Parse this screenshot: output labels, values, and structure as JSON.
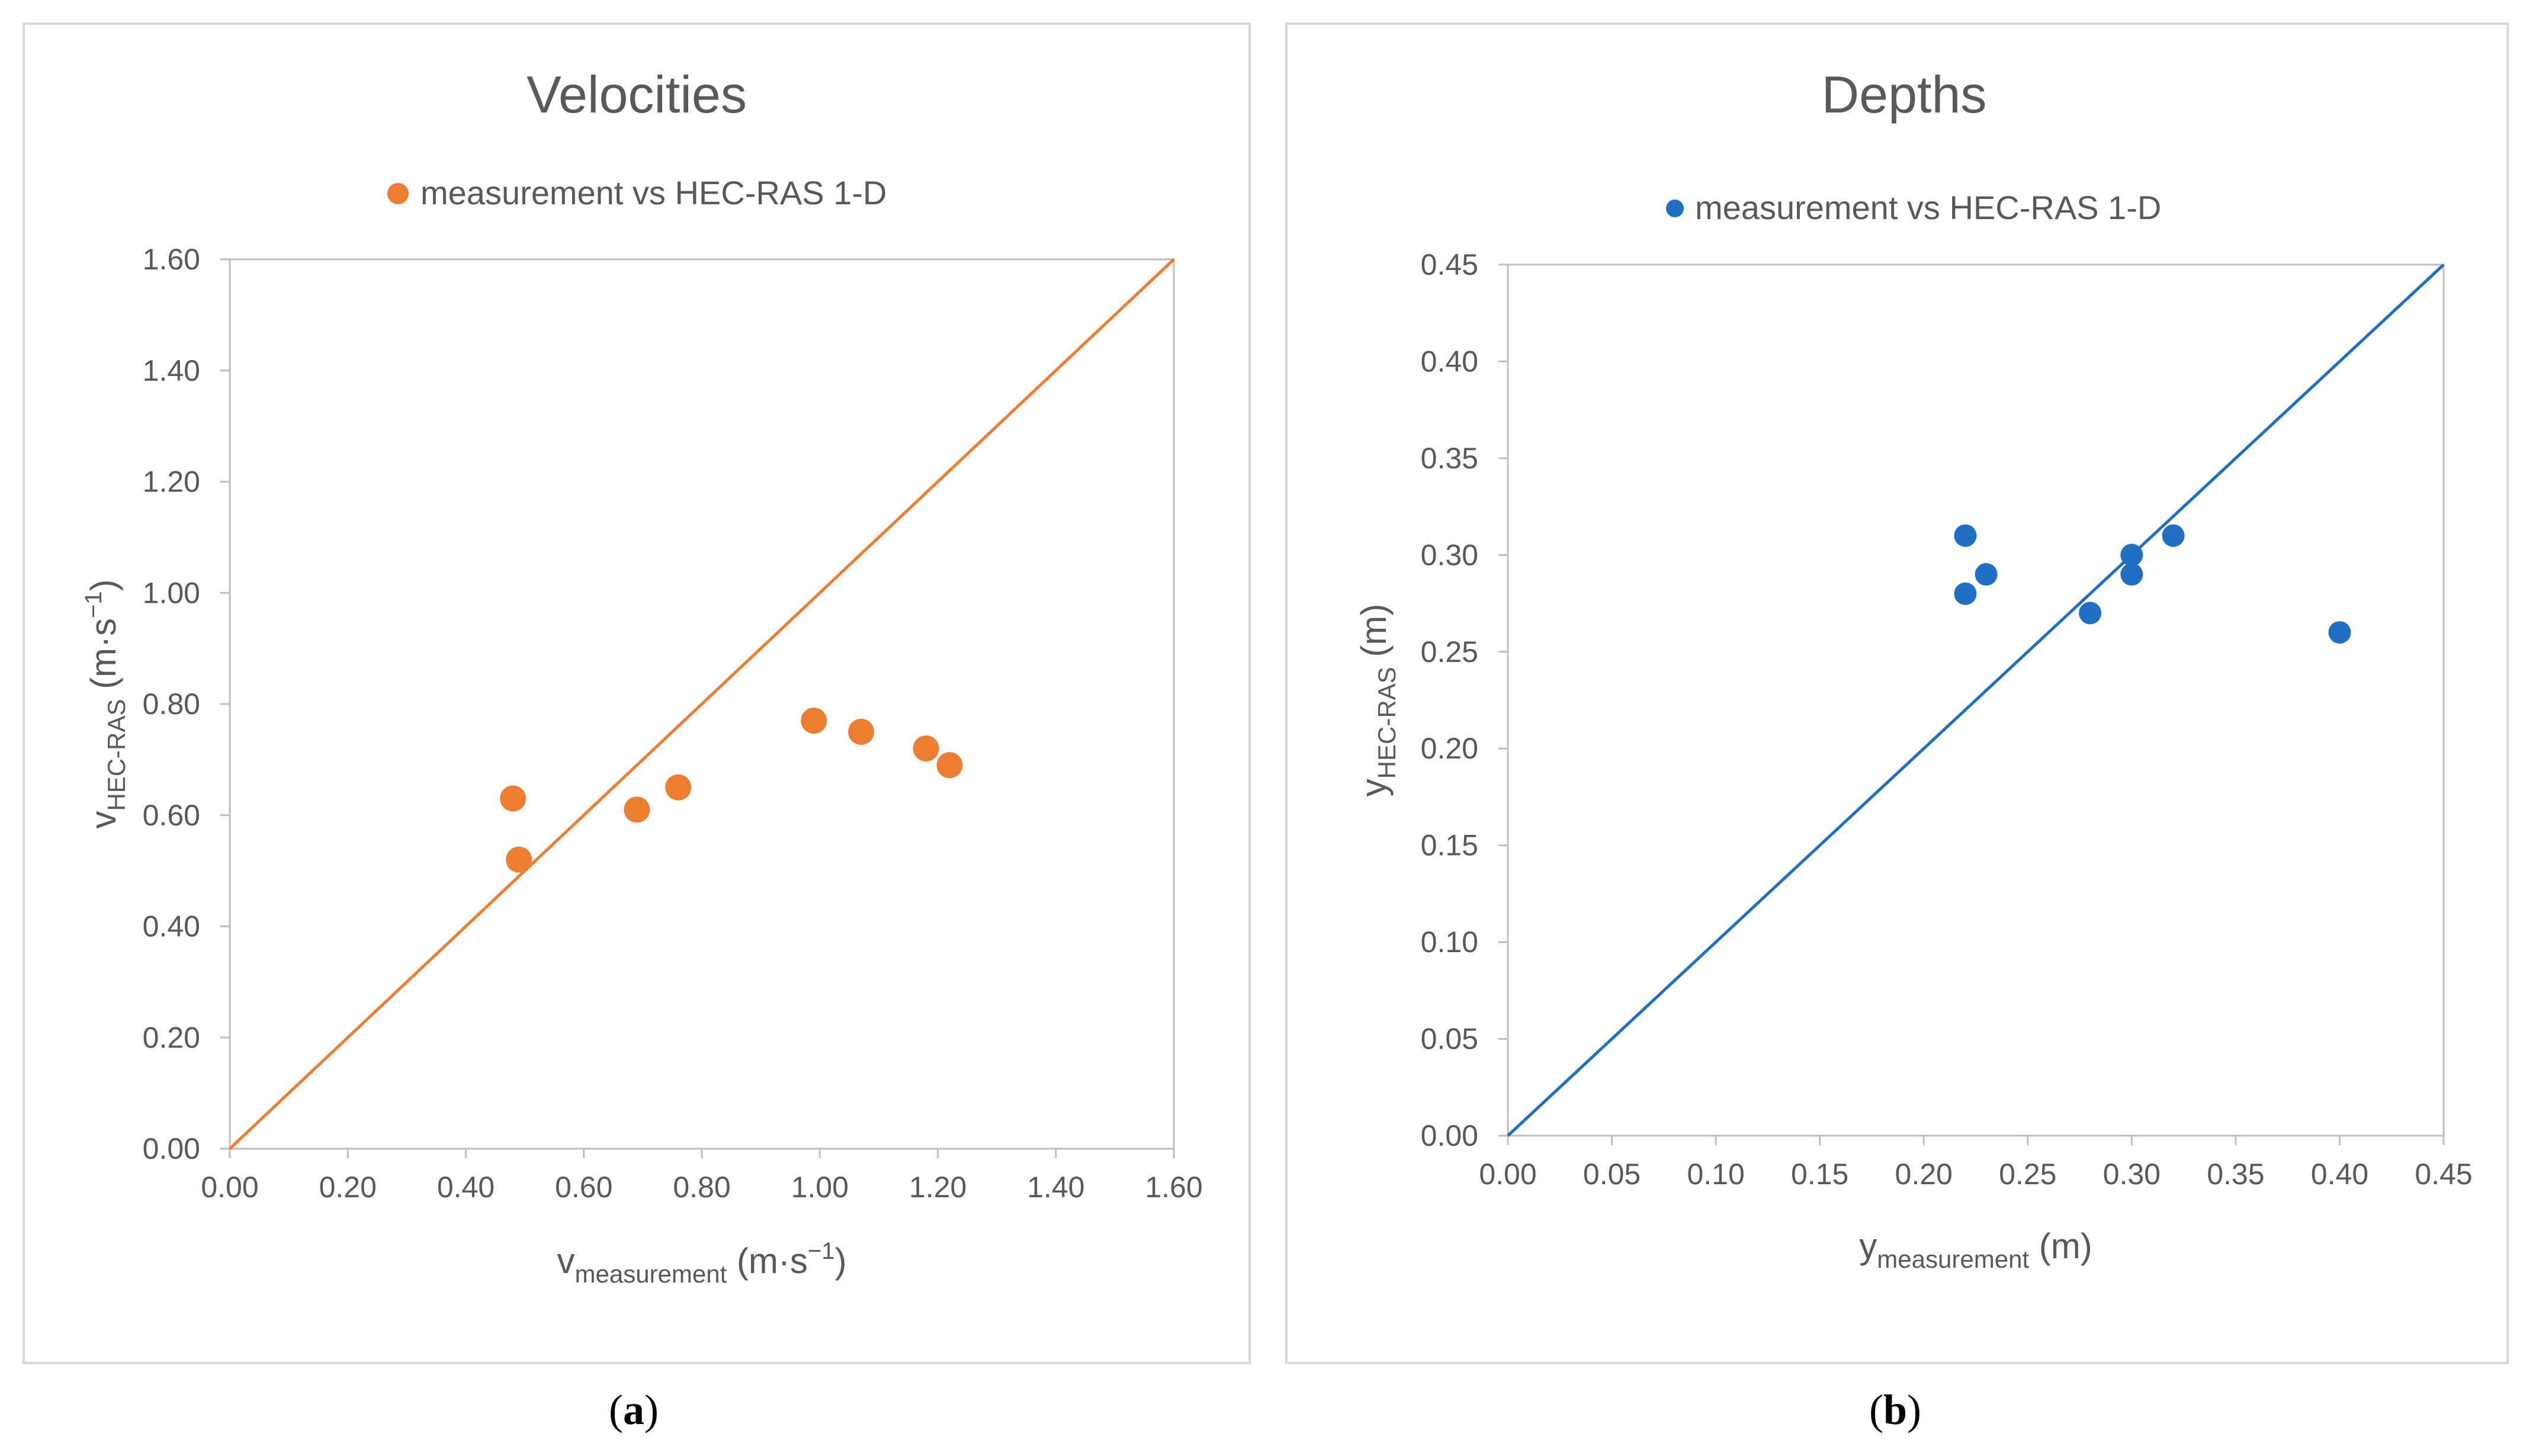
{
  "captions": {
    "a_open": "(",
    "a_letter": "a",
    "a_close": ")",
    "b_open": "(",
    "b_letter": "b",
    "b_close": ")"
  },
  "chart_data": [
    {
      "type": "scatter",
      "title": "Velocities",
      "legend": {
        "label": "measurement vs HEC-RAS 1-D",
        "position": "top"
      },
      "series": [
        {
          "name": "measurement vs HEC-RAS 1-D",
          "color": "#ED7D31",
          "x": [
            0.48,
            0.49,
            0.69,
            0.76,
            0.99,
            1.07,
            1.18,
            1.22
          ],
          "y": [
            0.63,
            0.52,
            0.61,
            0.65,
            0.77,
            0.75,
            0.72,
            0.69
          ]
        }
      ],
      "reference_line": {
        "from": [
          0.0,
          0.0
        ],
        "to": [
          1.6,
          1.6
        ],
        "color": "#ED7D31"
      },
      "xlabel": {
        "base": "v",
        "sub": "measurement",
        "unit": "(m·s",
        "sup": "−1",
        "close": ")"
      },
      "ylabel": {
        "base": "v",
        "sub": "HEC-RAS",
        "unit": "(m·s",
        "sup": "−1",
        "close": ")"
      },
      "xlim": [
        0,
        1.6
      ],
      "ylim": [
        0,
        1.6
      ],
      "xticks": [
        "0.00",
        "0.20",
        "0.40",
        "0.60",
        "0.80",
        "1.00",
        "1.20",
        "1.40",
        "1.60"
      ],
      "yticks": [
        "0.00",
        "0.20",
        "0.40",
        "0.60",
        "0.80",
        "1.00",
        "1.20",
        "1.40",
        "1.60"
      ],
      "grid": false
    },
    {
      "type": "scatter",
      "title": "Depths",
      "legend": {
        "label": "measurement vs HEC-RAS 1-D",
        "position": "top"
      },
      "series": [
        {
          "name": "measurement vs HEC-RAS 1-D",
          "color": "#1F6FC5",
          "x": [
            0.22,
            0.22,
            0.23,
            0.28,
            0.3,
            0.3,
            0.32,
            0.4
          ],
          "y": [
            0.31,
            0.28,
            0.29,
            0.27,
            0.3,
            0.29,
            0.31,
            0.26
          ]
        }
      ],
      "reference_line": {
        "from": [
          0.0,
          0.0
        ],
        "to": [
          0.45,
          0.45
        ],
        "color": "#1F6FC5"
      },
      "xlabel": {
        "base": "y",
        "sub": "measurement",
        "unit": "(m)"
      },
      "ylabel": {
        "base": "y",
        "sub": "HEC-RAS",
        "unit": "(m)"
      },
      "xlim": [
        0,
        0.45
      ],
      "ylim": [
        0,
        0.45
      ],
      "xticks": [
        "0.00",
        "0.05",
        "0.10",
        "0.15",
        "0.20",
        "0.25",
        "0.30",
        "0.35",
        "0.40",
        "0.45"
      ],
      "yticks": [
        "0.00",
        "0.05",
        "0.10",
        "0.15",
        "0.20",
        "0.25",
        "0.30",
        "0.35",
        "0.40",
        "0.45"
      ],
      "grid": false
    }
  ]
}
